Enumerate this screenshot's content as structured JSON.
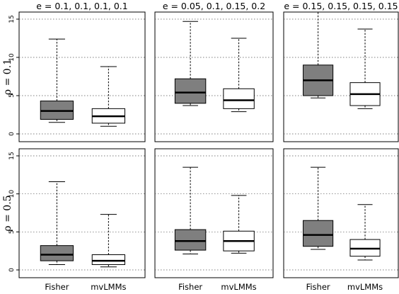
{
  "chart_data": {
    "type": "boxplot",
    "grid": true,
    "ylim": [
      0,
      15
    ],
    "yticks": [
      0,
      5,
      10,
      15
    ],
    "categories": [
      "Fisher",
      "mvLMMs"
    ],
    "category_fills": [
      "#7f7f7f",
      "#ffffff"
    ],
    "columns": [
      "e = 0.1, 0.1, 0.1, 0.1",
      "e = 0.05, 0.1, 0.15, 0.2",
      "e = 0.15, 0.15, 0.15, 0.15"
    ],
    "rows": [
      "ρ = 0.1",
      "ρ = 0.5"
    ],
    "panels": [
      {
        "row": 0,
        "col": 0,
        "boxes": [
          {
            "category": "Fisher",
            "min": 1.5,
            "q1": 1.9,
            "median": 3.0,
            "q3": 4.3,
            "max": 12.4
          },
          {
            "category": "mvLMMs",
            "min": 1.0,
            "q1": 1.4,
            "median": 2.3,
            "q3": 3.3,
            "max": 8.8
          }
        ]
      },
      {
        "row": 0,
        "col": 1,
        "boxes": [
          {
            "category": "Fisher",
            "min": 3.7,
            "q1": 4.0,
            "median": 5.4,
            "q3": 7.2,
            "max": 14.7
          },
          {
            "category": "mvLMMs",
            "min": 2.9,
            "q1": 3.3,
            "median": 4.4,
            "q3": 5.9,
            "max": 12.5
          }
        ]
      },
      {
        "row": 0,
        "col": 2,
        "boxes": [
          {
            "category": "Fisher",
            "min": 4.7,
            "q1": 5.0,
            "median": 7.0,
            "q3": 9.0,
            "max": 16.0
          },
          {
            "category": "mvLMMs",
            "min": 3.3,
            "q1": 3.7,
            "median": 5.2,
            "q3": 6.7,
            "max": 13.7
          }
        ]
      },
      {
        "row": 1,
        "col": 0,
        "boxes": [
          {
            "category": "Fisher",
            "min": 0.7,
            "q1": 1.2,
            "median": 2.0,
            "q3": 3.2,
            "max": 11.6
          },
          {
            "category": "mvLMMs",
            "min": 0.4,
            "q1": 0.7,
            "median": 1.2,
            "q3": 2.0,
            "max": 7.3
          }
        ]
      },
      {
        "row": 1,
        "col": 1,
        "boxes": [
          {
            "category": "Fisher",
            "min": 2.1,
            "q1": 2.6,
            "median": 3.8,
            "q3": 5.3,
            "max": 13.5
          },
          {
            "category": "mvLMMs",
            "min": 2.2,
            "q1": 2.5,
            "median": 3.8,
            "q3": 5.1,
            "max": 9.8
          }
        ]
      },
      {
        "row": 1,
        "col": 2,
        "boxes": [
          {
            "category": "Fisher",
            "min": 2.7,
            "q1": 3.1,
            "median": 4.6,
            "q3": 6.5,
            "max": 13.5
          },
          {
            "category": "mvLMMs",
            "min": 1.3,
            "q1": 1.8,
            "median": 2.8,
            "q3": 4.0,
            "max": 8.6
          }
        ]
      }
    ]
  }
}
